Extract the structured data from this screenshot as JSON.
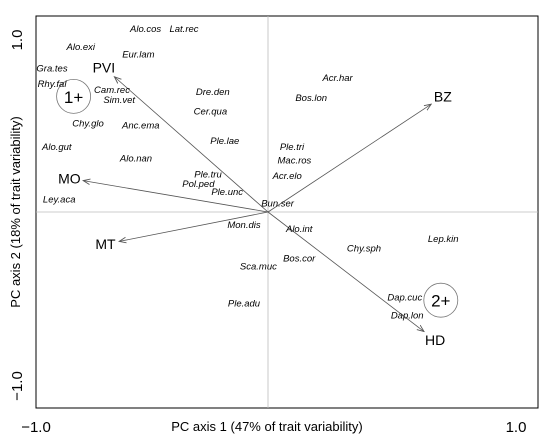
{
  "chart_data": {
    "type": "scatter",
    "xlabel": "PC axis 1 (47% of trait variability)",
    "ylabel": "PC axis 2 (18% of trait variability)",
    "xlim": [
      -1.0,
      1.0
    ],
    "ylim": [
      -1.0,
      1.0
    ],
    "x_ticks": [
      {
        "value": -1.0,
        "label": "−1.0"
      },
      {
        "value": 1.0,
        "label": "1.0"
      }
    ],
    "y_ticks": [
      {
        "value": -1.0,
        "label": "−1.0"
      },
      {
        "value": 1.0,
        "label": "1.0"
      }
    ],
    "grid": false,
    "reference_lines": [
      0,
      0
    ],
    "species": [
      {
        "label": "Alo.cos",
        "x": -0.51,
        "y": 0.93
      },
      {
        "label": "Lat.rec",
        "x": -0.35,
        "y": 0.93
      },
      {
        "label": "Alo.exi",
        "x": -0.78,
        "y": 0.84
      },
      {
        "label": "Eur.lam",
        "x": -0.54,
        "y": 0.8
      },
      {
        "label": "Gra.tes",
        "x": -0.9,
        "y": 0.73
      },
      {
        "label": "Rhy.fal",
        "x": -0.9,
        "y": 0.65
      },
      {
        "label": "Acr.har",
        "x": 0.29,
        "y": 0.68
      },
      {
        "label": "Cam.rec",
        "x": -0.65,
        "y": 0.62
      },
      {
        "label": "Sim.vet",
        "x": -0.62,
        "y": 0.57
      },
      {
        "label": "Dre.den",
        "x": -0.23,
        "y": 0.61
      },
      {
        "label": "Bos.lon",
        "x": 0.18,
        "y": 0.58
      },
      {
        "label": "Cer.qua",
        "x": -0.24,
        "y": 0.51
      },
      {
        "label": "Chy.glo",
        "x": -0.75,
        "y": 0.45
      },
      {
        "label": "Anc.ema",
        "x": -0.53,
        "y": 0.44
      },
      {
        "label": "Ple.lae",
        "x": -0.18,
        "y": 0.36
      },
      {
        "label": "Ple.tri",
        "x": 0.1,
        "y": 0.33
      },
      {
        "label": "Alo.gut",
        "x": -0.88,
        "y": 0.33
      },
      {
        "label": "Mac.ros",
        "x": 0.11,
        "y": 0.26
      },
      {
        "label": "Alo.nan",
        "x": -0.55,
        "y": 0.27
      },
      {
        "label": "Ple.tru",
        "x": -0.25,
        "y": 0.19
      },
      {
        "label": "Acr.elo",
        "x": 0.08,
        "y": 0.18
      },
      {
        "label": "Pol.ped",
        "x": -0.29,
        "y": 0.14
      },
      {
        "label": "Ple.unc",
        "x": -0.17,
        "y": 0.1
      },
      {
        "label": "Bun.ser",
        "x": 0.04,
        "y": 0.04
      },
      {
        "label": "Ley.aca",
        "x": -0.87,
        "y": 0.06
      },
      {
        "label": "Mon.dis",
        "x": -0.1,
        "y": -0.07
      },
      {
        "label": "Alo.int",
        "x": 0.13,
        "y": -0.09
      },
      {
        "label": "Chy.sph",
        "x": 0.4,
        "y": -0.19
      },
      {
        "label": "Lep.kin",
        "x": 0.73,
        "y": -0.14
      },
      {
        "label": "Bos.cor",
        "x": 0.13,
        "y": -0.24
      },
      {
        "label": "Sca.muc",
        "x": -0.04,
        "y": -0.28
      },
      {
        "label": "Ple.adu",
        "x": -0.1,
        "y": -0.47
      },
      {
        "label": "Dap.cuc",
        "x": 0.57,
        "y": -0.44
      },
      {
        "label": "Dap.lon",
        "x": 0.58,
        "y": -0.53
      }
    ],
    "vectors": [
      {
        "label": "PVI",
        "x": -0.64,
        "y": 0.69
      },
      {
        "label": "BZ",
        "x": 0.68,
        "y": 0.55
      },
      {
        "label": "MO",
        "x": -0.77,
        "y": 0.16
      },
      {
        "label": "MT",
        "x": -0.62,
        "y": -0.15
      },
      {
        "label": "HD",
        "x": 0.65,
        "y": -0.61
      }
    ],
    "groups": [
      {
        "label": "1+",
        "x": -0.81,
        "y": 0.59
      },
      {
        "label": "2+",
        "x": 0.72,
        "y": -0.45
      }
    ]
  }
}
